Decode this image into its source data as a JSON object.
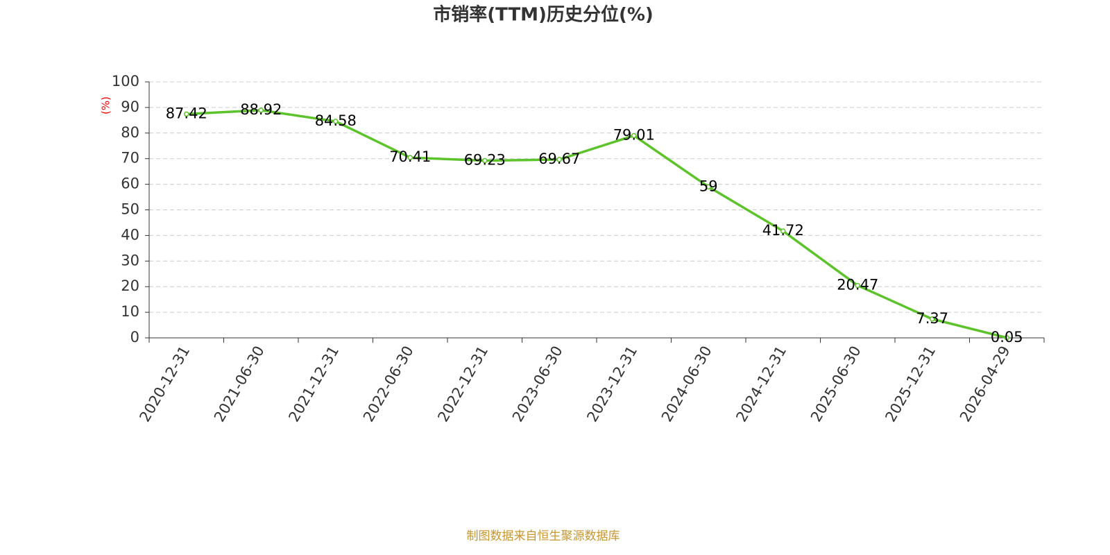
{
  "chart_data": {
    "type": "line",
    "title": "市销率(TTM)历史分位(%)",
    "y_label": "(%)",
    "source": "制图数据来自恒生聚源数据库",
    "categories": [
      "2020-12-31",
      "2021-06-30",
      "2021-12-31",
      "2022-06-30",
      "2022-12-31",
      "2023-06-30",
      "2023-12-31",
      "2024-06-30",
      "2024-12-31",
      "2025-06-30",
      "2025-12-31",
      "2026-04-29"
    ],
    "values": [
      87.42,
      88.92,
      84.58,
      70.41,
      69.23,
      69.67,
      79.01,
      59,
      41.72,
      20.47,
      7.37,
      0.05
    ],
    "color": "#5cc42a",
    "ylim": [
      0,
      100
    ],
    "yticks": [
      0,
      10,
      20,
      30,
      40,
      50,
      60,
      70,
      80,
      90,
      100
    ],
    "grid": true
  }
}
